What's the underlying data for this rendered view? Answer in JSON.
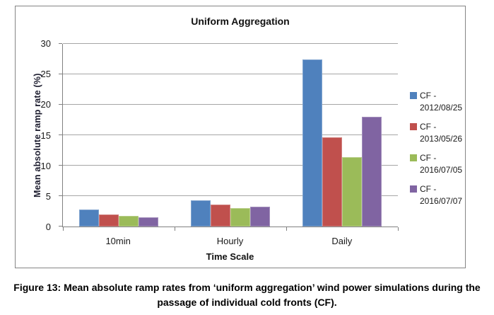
{
  "figure": {
    "caption": "Figure 13: Mean absolute ramp rates from ‘uniform aggregation’ wind power simulations during the passage of individual cold fronts (CF)."
  },
  "chart_data": {
    "type": "bar",
    "title": "Uniform Aggregation",
    "xlabel": "Time Scale",
    "ylabel": "Mean absolute ramp rate (%)",
    "categories": [
      "10min",
      "Hourly",
      "Daily"
    ],
    "series": [
      {
        "name": "CF - 2012/08/25",
        "color": "#4F81BD",
        "values": [
          2.8,
          4.3,
          27.4
        ]
      },
      {
        "name": "CF - 2013/05/26",
        "color": "#C0504D",
        "values": [
          2.0,
          3.6,
          14.7
        ]
      },
      {
        "name": "CF - 2016/07/05",
        "color": "#9BBB59",
        "values": [
          1.8,
          3.0,
          11.4
        ]
      },
      {
        "name": "CF - 2016/07/07",
        "color": "#8064A2",
        "values": [
          1.5,
          3.3,
          18.0
        ]
      }
    ],
    "ylim": [
      0,
      30
    ],
    "yticks": [
      0,
      5,
      10,
      15,
      20,
      25,
      30
    ],
    "grid": true,
    "legend_position": "right",
    "colors": {
      "gridline": "#a6a6a6",
      "axis": "#808080",
      "frame_border": "#858585",
      "background": "#ffffff"
    }
  }
}
